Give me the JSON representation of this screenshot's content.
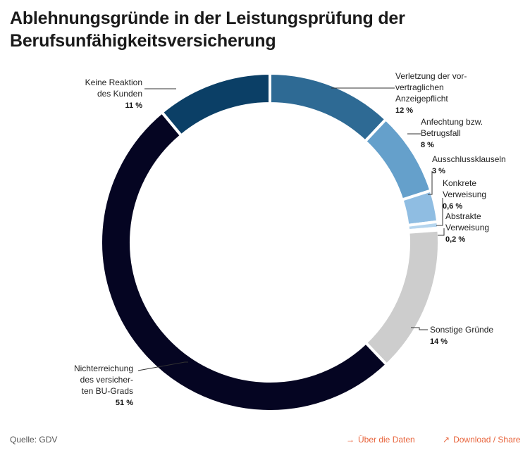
{
  "title": "Ablehnungsgründe in der Leistungsprüfung der Berufsunfähigkeitsversicherung",
  "footer": {
    "source": "Quelle: GDV",
    "data_link": "Über die Daten",
    "share_link": "Download / Share",
    "data_link_icon": "arrow-right-icon",
    "share_link_icon": "arrow-up-right-icon",
    "link_color": "#e8643c"
  },
  "chart_data": {
    "type": "donut",
    "unit": "%",
    "slices": [
      {
        "label_lines": [
          "Verletzung der vor-",
          "vertraglichen",
          "Anzeigepflicht"
        ],
        "value": 12,
        "value_label": "12 %",
        "color": "#2e6a94"
      },
      {
        "label_lines": [
          "Anfechtung bzw.",
          "Betrugsfall"
        ],
        "value": 8,
        "value_label": "8 %",
        "color": "#65a0cb"
      },
      {
        "label_lines": [
          "Ausschlussklauseln"
        ],
        "value": 3,
        "value_label": "3 %",
        "color": "#8fbde2"
      },
      {
        "label_lines": [
          "Konkrete",
          "Verweisung"
        ],
        "value": 0.6,
        "value_label": "0,6 %",
        "color": "#b5d5ee"
      },
      {
        "label_lines": [
          "Abstrakte",
          "Verweisung"
        ],
        "value": 0.2,
        "value_label": "0,2 %",
        "color": "#d3e6f5"
      },
      {
        "label_lines": [
          "Sonstige Gründe"
        ],
        "value": 14,
        "value_label": "14 %",
        "color": "#cdcdcd"
      },
      {
        "label_lines": [
          "Nichterreichung",
          "des versicher-",
          "ten BU-Grads"
        ],
        "value": 51,
        "value_label": "51 %",
        "color": "#050522"
      },
      {
        "label_lines": [
          "Keine Reaktion",
          "des Kunden"
        ],
        "value": 11,
        "value_label": "11 %",
        "color": "#0b3f66"
      }
    ]
  }
}
